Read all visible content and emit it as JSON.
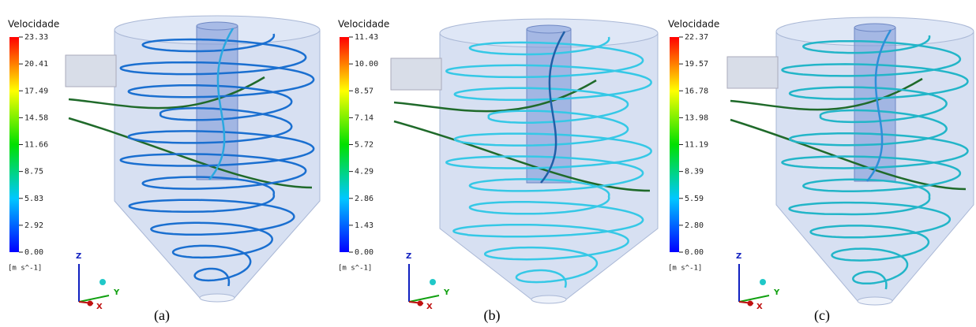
{
  "panels": [
    {
      "legend": {
        "title": "Velocidade",
        "ticks": [
          "23.33",
          "20.41",
          "17.49",
          "14.58",
          "11.66",
          "8.75",
          "5.83",
          "2.92",
          "0.00"
        ],
        "unit": "[m s^-1]"
      },
      "axes": {
        "z": "Z",
        "y": "Y",
        "x": "X"
      },
      "caption": "(a)"
    },
    {
      "legend": {
        "title": "Velocidade",
        "ticks": [
          "11.43",
          "10.00",
          "8.57",
          "7.14",
          "5.72",
          "4.29",
          "2.86",
          "1.43",
          "0.00"
        ],
        "unit": "[m s^-1]"
      },
      "axes": {
        "z": "Z",
        "y": "Y",
        "x": "X"
      },
      "caption": "(b)"
    },
    {
      "legend": {
        "title": "Velocidade",
        "ticks": [
          "22.37",
          "19.57",
          "16.78",
          "13.98",
          "11.19",
          "8.39",
          "5.59",
          "2.80",
          "0.00"
        ],
        "unit": "[m s^-1]"
      },
      "axes": {
        "z": "Z",
        "y": "Y",
        "x": "X"
      },
      "caption": "(c)"
    }
  ]
}
